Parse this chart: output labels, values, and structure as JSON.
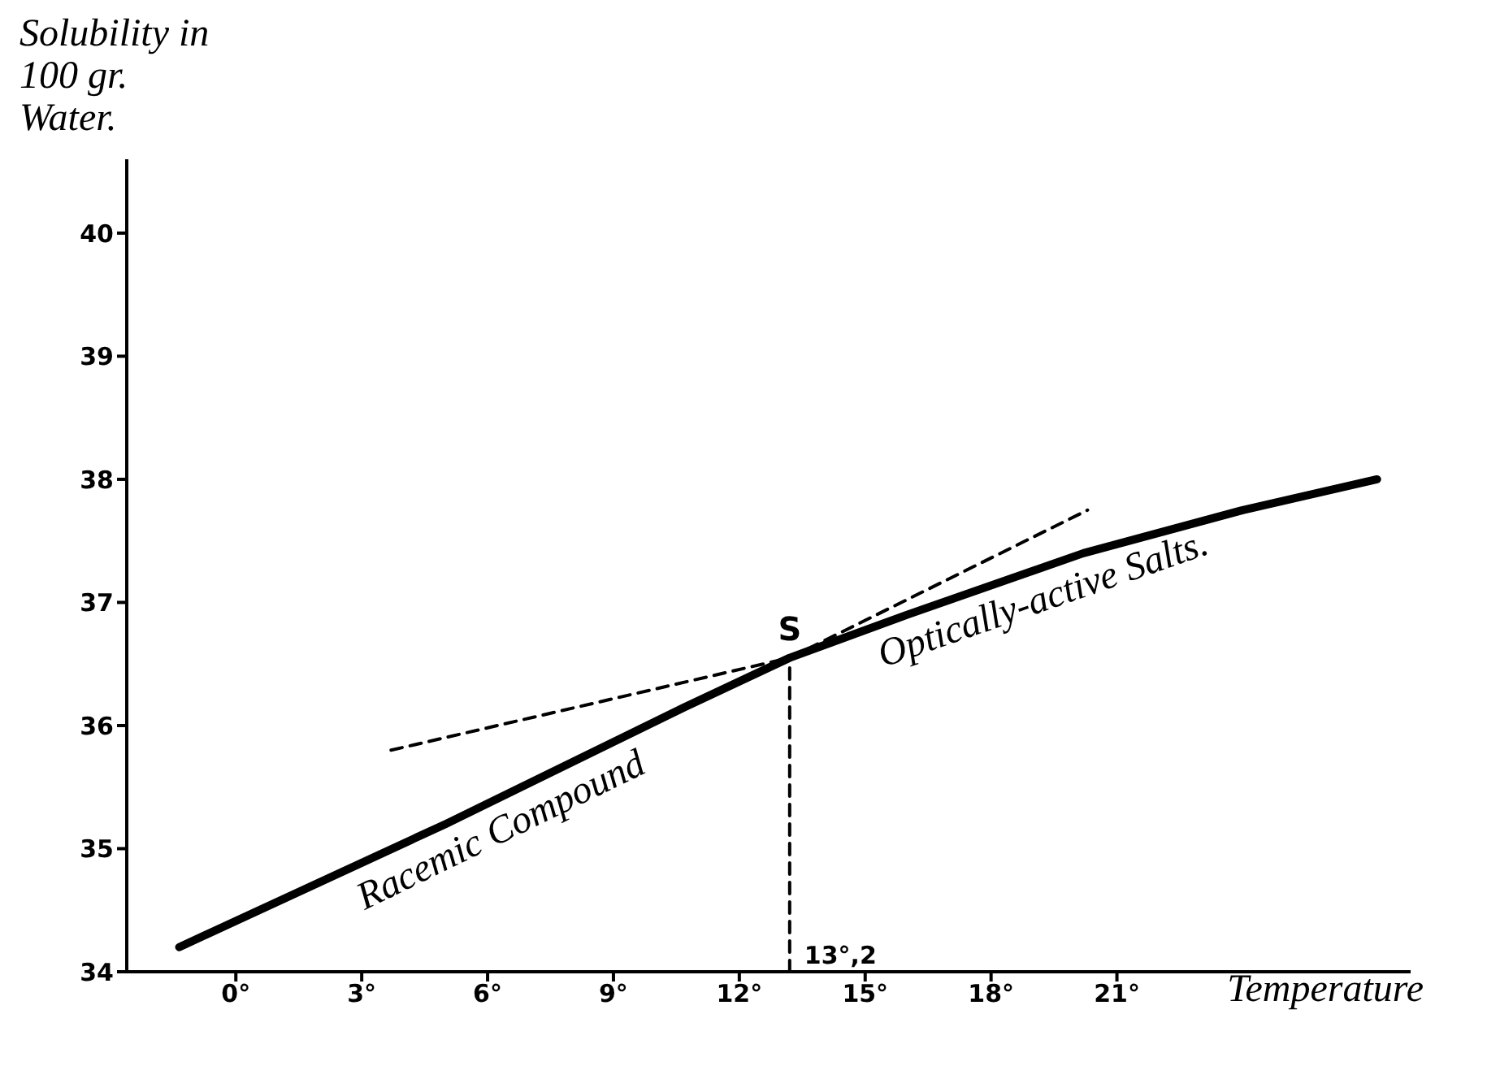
{
  "chart_data": {
    "type": "line",
    "ylabel": "Solubility in 100 gr. Water.",
    "xlabel": "Temperature",
    "series": [
      {
        "color": "#000000",
        "x": [
          -1.35,
          5,
          10.7,
          13.2,
          16,
          20.2,
          24,
          27.2
        ],
        "values": [
          34.2,
          35.2,
          36.15,
          36.55,
          36.9,
          37.4,
          37.75,
          38.0
        ]
      },
      {
        "color": "#000000",
        "line_style": "dashed",
        "x": [
          3.7,
          13.2,
          20.3
        ],
        "values": [
          35.8,
          36.55,
          37.75
        ]
      },
      {
        "color": "#000000",
        "line_style": "dashed",
        "x": [
          13.2,
          13.2
        ],
        "values": [
          34,
          36.55
        ]
      }
    ],
    "annotations": [
      {
        "text": "Racemic Compound",
        "x": 6,
        "y": 35.37
      },
      {
        "text": "Optically-active Salts.",
        "x": 19,
        "y": 37.26
      },
      {
        "text": "S",
        "x": 13.2,
        "y": 36.55
      },
      {
        "text": "13°,2",
        "x": 13.2,
        "y": 34
      }
    ],
    "xlim": [
      -2.6,
      28
    ],
    "xticks": [
      {
        "value": 0,
        "label": "0°"
      },
      {
        "value": 3,
        "label": "3°"
      },
      {
        "value": 6,
        "label": "6°"
      },
      {
        "value": 9,
        "label": "9°"
      },
      {
        "value": 12,
        "label": "12°"
      },
      {
        "value": 15,
        "label": "15°"
      },
      {
        "value": 18,
        "label": "18°"
      },
      {
        "value": 21,
        "label": "21°"
      }
    ],
    "ylim": [
      34,
      40.6
    ],
    "yticks": [
      34,
      35,
      36,
      37,
      38,
      39,
      40
    ],
    "grid": false,
    "legend": false,
    "marker": "none",
    "line_style": "solid"
  }
}
